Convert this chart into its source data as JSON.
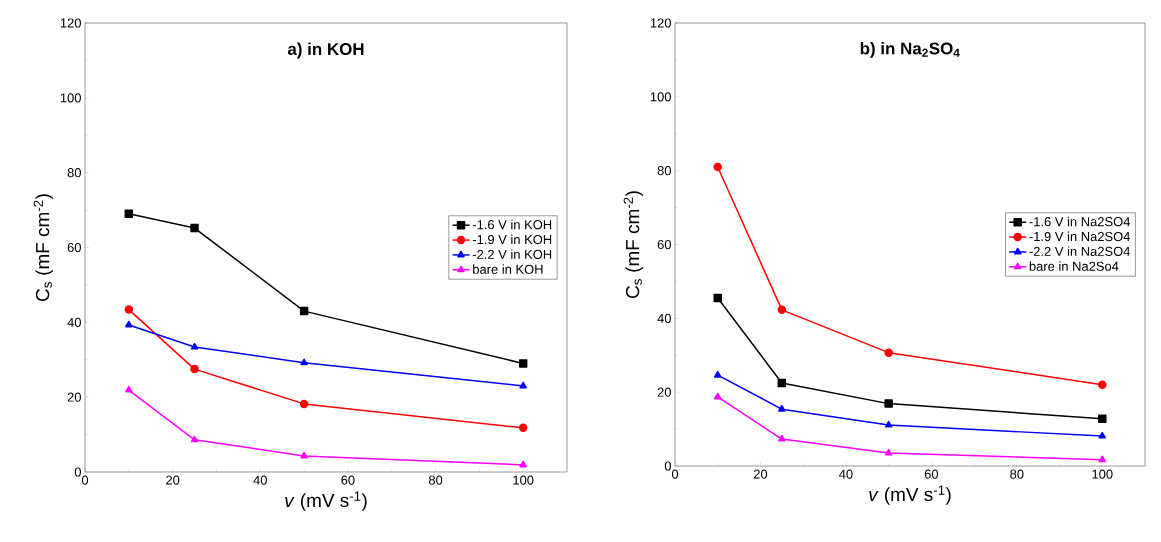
{
  "chart_data": [
    {
      "type": "line",
      "title": "a) in KOH",
      "xlabel": "*v* (mV s$^{-1}$)",
      "ylabel": "C$_{s}$ (mF cm$^{-2}$)",
      "x": [
        10,
        25,
        50,
        100
      ],
      "xlim": [
        0,
        110
      ],
      "xticks": [
        0,
        20,
        40,
        60,
        80,
        100
      ],
      "ylim": [
        0,
        120
      ],
      "yticks": [
        0,
        20,
        40,
        60,
        80,
        100,
        120
      ],
      "legend": "right",
      "series": [
        {
          "name": "-1.6 V in KOH",
          "color": "#000000",
          "marker": "square",
          "values": [
            69,
            65.2,
            43,
            29
          ]
        },
        {
          "name": "-1.9 V in KOH",
          "color": "#ff0000",
          "marker": "circle",
          "values": [
            43.4,
            27.5,
            18.2,
            11.8
          ]
        },
        {
          "name": "-2.2 V in KOH",
          "color": "#0000ff",
          "marker": "triangle",
          "values": [
            39.3,
            33.4,
            29.2,
            23
          ]
        },
        {
          "name": "bare in KOH",
          "color": "#ff00ff",
          "marker": "triangle",
          "values": [
            21.9,
            8.6,
            4.3,
            1.9
          ]
        }
      ]
    },
    {
      "type": "line",
      "title": "b) in Na$_{2}$SO$_{4}$",
      "xlabel": "*v* (mV s$^{-1}$)",
      "ylabel": "C$_{s}$ (mF cm$^{-2}$)",
      "x": [
        10,
        25,
        50,
        100
      ],
      "xlim": [
        0,
        110
      ],
      "xticks": [
        0,
        20,
        40,
        60,
        80,
        100
      ],
      "ylim": [
        0,
        120
      ],
      "yticks": [
        0,
        20,
        40,
        60,
        80,
        100,
        120
      ],
      "legend": "right",
      "series": [
        {
          "name": "-1.6 V in Na2SO4",
          "color": "#000000",
          "marker": "square",
          "values": [
            45.5,
            22.5,
            16.9,
            12.8
          ]
        },
        {
          "name": "-1.9 V in Na2SO4",
          "color": "#ff0000",
          "marker": "circle",
          "values": [
            81,
            42.3,
            30.7,
            22
          ]
        },
        {
          "name": "-2.2 V in Na2SO4",
          "color": "#0000ff",
          "marker": "triangle",
          "values": [
            24.6,
            15.4,
            11.1,
            8.1
          ]
        },
        {
          "name": "bare in Na2So4",
          "color": "#ff00ff",
          "marker": "triangle",
          "values": [
            18.7,
            7.3,
            3.5,
            1.7
          ]
        }
      ]
    }
  ]
}
